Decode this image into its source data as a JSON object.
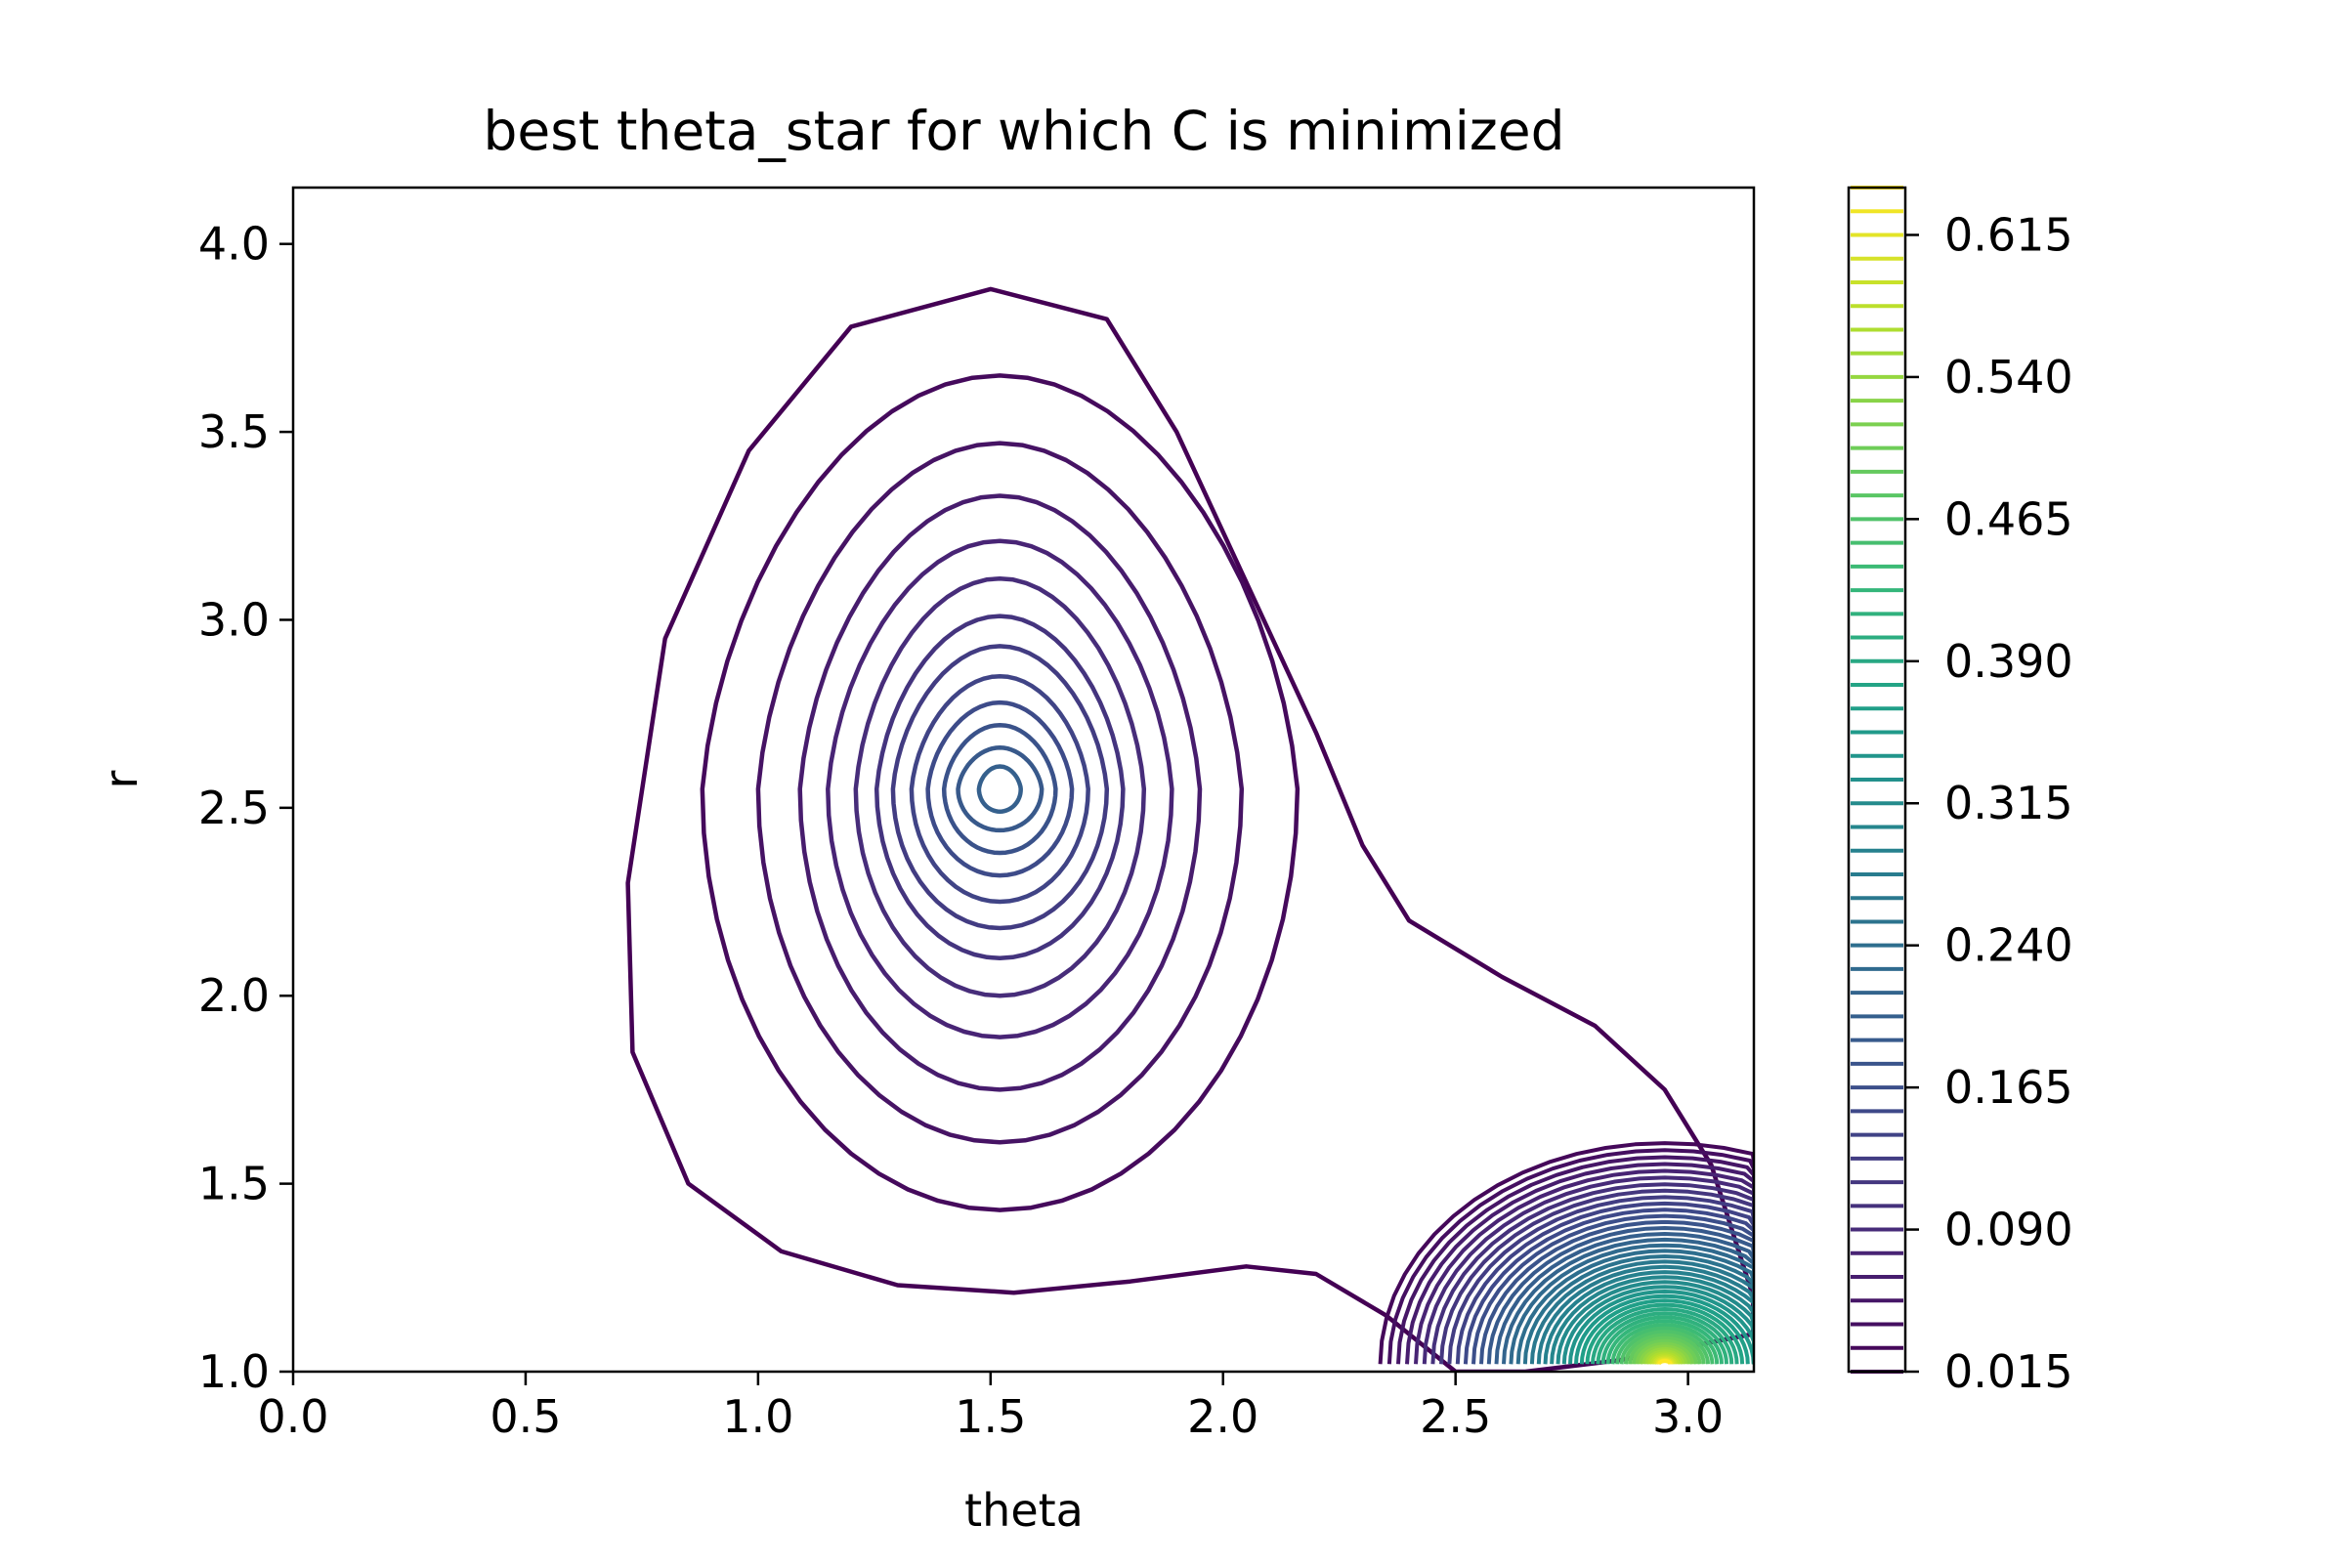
{
  "chart_data": {
    "type": "contour",
    "title": "best theta_star for which C is minimized",
    "xlabel": "theta",
    "ylabel": "r",
    "xlim": [
      0.0,
      3.1416
    ],
    "ylim": [
      1.0,
      4.15
    ],
    "x_ticks": [
      0.0,
      0.5,
      1.0,
      1.5,
      2.0,
      2.5,
      3.0
    ],
    "x_tick_labels": [
      "0.0",
      "0.5",
      "1.0",
      "1.5",
      "2.0",
      "2.5",
      "3.0"
    ],
    "y_ticks": [
      1.0,
      1.5,
      2.0,
      2.5,
      3.0,
      3.5,
      4.0
    ],
    "y_tick_labels": [
      "1.0",
      "1.5",
      "2.0",
      "2.5",
      "3.0",
      "3.5",
      "4.0"
    ],
    "colormap": "viridis",
    "colorbar": {
      "min": 0.015,
      "max": 0.64,
      "level_step": 0.0125,
      "ticks": [
        0.015,
        0.09,
        0.165,
        0.24,
        0.315,
        0.39,
        0.465,
        0.54,
        0.615
      ],
      "tick_labels": [
        "0.015",
        "0.090",
        "0.165",
        "0.240",
        "0.315",
        "0.390",
        "0.465",
        "0.540",
        "0.615"
      ]
    },
    "main_peak": {
      "center": [
        1.52,
        2.55
      ],
      "value": 0.22,
      "level_count": 13,
      "outer_boundary": [
        [
          1.5,
          3.88
        ],
        [
          1.2,
          3.78
        ],
        [
          0.98,
          3.45
        ],
        [
          0.8,
          2.95
        ],
        [
          0.72,
          2.3
        ],
        [
          0.73,
          1.85
        ],
        [
          0.85,
          1.5
        ],
        [
          1.05,
          1.32
        ],
        [
          1.3,
          1.23
        ],
        [
          1.55,
          1.21
        ],
        [
          1.8,
          1.24
        ],
        [
          2.05,
          1.28
        ],
        [
          2.2,
          1.26
        ],
        [
          2.35,
          1.15
        ],
        [
          2.5,
          1.0
        ],
        [
          2.65,
          1.0
        ],
        [
          2.85,
          1.03
        ],
        [
          3.14,
          1.1
        ],
        [
          3.14,
          1.2
        ],
        [
          3.05,
          1.55
        ],
        [
          2.95,
          1.75
        ],
        [
          2.8,
          1.92
        ],
        [
          2.6,
          2.05
        ],
        [
          2.4,
          2.2
        ],
        [
          2.3,
          2.4
        ],
        [
          2.2,
          2.7
        ],
        [
          2.05,
          3.1
        ],
        [
          1.9,
          3.5
        ],
        [
          1.75,
          3.8
        ]
      ]
    },
    "secondary_peak": {
      "center": [
        2.95,
        1.02
      ],
      "value": 0.64,
      "level_count": 50
    }
  }
}
